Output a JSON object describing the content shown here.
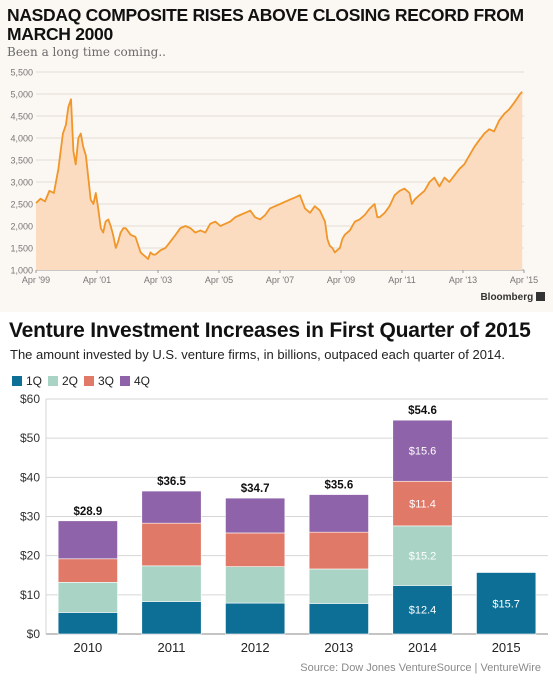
{
  "chart_data": [
    {
      "type": "area",
      "title": "NASDAQ COMPOSITE RISES ABOVE CLOSING RECORD FROM MARCH 2000",
      "subtitle": "Been a long time coming..",
      "source": "Bloomberg",
      "x_tick_labels": [
        "Apr '99",
        "Apr '01",
        "Apr '03",
        "Apr '05",
        "Apr '07",
        "Apr '09",
        "Apr '11",
        "Apr '13",
        "Apr '15"
      ],
      "y_tick_labels": [
        "1,000",
        "1,500",
        "2,000",
        "2,500",
        "3,000",
        "3,500",
        "4,000",
        "4,500",
        "5,000",
        "5,500"
      ],
      "ylim": [
        1000,
        5500
      ],
      "xlim": [
        1999.0,
        2015.33
      ],
      "grid": true,
      "color": "#f0962a",
      "fill": "#fbdcc0",
      "x": [
        1999.0,
        1999.15,
        1999.3,
        1999.45,
        1999.6,
        1999.75,
        1999.9,
        2000.0,
        2000.08,
        2000.17,
        2000.25,
        2000.33,
        2000.42,
        2000.5,
        2000.58,
        2000.67,
        2000.75,
        2000.83,
        2000.92,
        2001.0,
        2001.08,
        2001.17,
        2001.25,
        2001.33,
        2001.42,
        2001.5,
        2001.58,
        2001.67,
        2001.75,
        2001.83,
        2001.92,
        2002.0,
        2002.17,
        2002.33,
        2002.5,
        2002.58,
        2002.67,
        2002.75,
        2002.83,
        2002.92,
        2003.0,
        2003.17,
        2003.33,
        2003.5,
        2003.67,
        2003.83,
        2004.0,
        2004.17,
        2004.33,
        2004.5,
        2004.67,
        2004.83,
        2005.0,
        2005.17,
        2005.33,
        2005.5,
        2005.67,
        2005.83,
        2006.0,
        2006.17,
        2006.33,
        2006.5,
        2006.67,
        2006.83,
        2007.0,
        2007.17,
        2007.33,
        2007.5,
        2007.67,
        2007.83,
        2008.0,
        2008.17,
        2008.33,
        2008.5,
        2008.67,
        2008.75,
        2008.83,
        2008.92,
        2009.0,
        2009.08,
        2009.17,
        2009.25,
        2009.33,
        2009.5,
        2009.67,
        2009.83,
        2010.0,
        2010.17,
        2010.33,
        2010.42,
        2010.5,
        2010.67,
        2010.83,
        2011.0,
        2011.17,
        2011.33,
        2011.5,
        2011.58,
        2011.67,
        2011.83,
        2012.0,
        2012.17,
        2012.33,
        2012.5,
        2012.67,
        2012.83,
        2013.0,
        2013.17,
        2013.33,
        2013.5,
        2013.67,
        2013.83,
        2014.0,
        2014.17,
        2014.33,
        2014.5,
        2014.67,
        2014.83,
        2015.0,
        2015.1,
        2015.2,
        2015.27
      ],
      "values": [
        2520,
        2620,
        2560,
        2800,
        2750,
        3300,
        4100,
        4300,
        4700,
        4880,
        3700,
        3400,
        4000,
        4100,
        3800,
        3600,
        3100,
        2600,
        2500,
        2750,
        2400,
        1950,
        1850,
        2100,
        2150,
        2000,
        1800,
        1500,
        1650,
        1850,
        1950,
        1950,
        1800,
        1750,
        1400,
        1350,
        1300,
        1250,
        1400,
        1350,
        1350,
        1450,
        1500,
        1650,
        1800,
        1950,
        2000,
        1950,
        1850,
        1900,
        1850,
        2050,
        2100,
        2000,
        2050,
        2100,
        2200,
        2250,
        2300,
        2350,
        2200,
        2150,
        2250,
        2400,
        2450,
        2500,
        2550,
        2600,
        2650,
        2700,
        2400,
        2300,
        2450,
        2350,
        2100,
        1700,
        1550,
        1500,
        1400,
        1450,
        1500,
        1700,
        1800,
        1900,
        2100,
        2150,
        2250,
        2400,
        2500,
        2200,
        2200,
        2300,
        2450,
        2700,
        2800,
        2850,
        2750,
        2500,
        2600,
        2700,
        2800,
        3000,
        3100,
        2900,
        3100,
        3000,
        3150,
        3300,
        3400,
        3600,
        3800,
        3950,
        4100,
        4200,
        4150,
        4400,
        4550,
        4650,
        4800,
        4900,
        5000,
        5050
      ]
    },
    {
      "type": "bar",
      "stacked": true,
      "title": "Venture Investment Increases in First Quarter of 2015",
      "subtitle": "The amount invested by U.S. venture firms, in billions, outpaced each quarter of 2014.",
      "source_text": "Source: Dow Jones VentureSource  |  VentureWire",
      "categories": [
        "2010",
        "2011",
        "2012",
        "2013",
        "2014",
        "2015"
      ],
      "ylim": [
        0,
        60
      ],
      "y_tick_labels": [
        "$0",
        "$10",
        "$20",
        "$30",
        "$40",
        "$50",
        "$60"
      ],
      "grid": true,
      "legend_position": "top-left",
      "totals": [
        "$28.9",
        "$36.5",
        "$34.7",
        "$35.6",
        "$54.6",
        ""
      ],
      "series": [
        {
          "name": "1Q",
          "color": "#0d6e96",
          "values": [
            5.5,
            8.3,
            7.9,
            7.8,
            12.4,
            15.7
          ],
          "labels": [
            "",
            "",
            "",
            "",
            "$12.4",
            "$15.7"
          ]
        },
        {
          "name": "2Q",
          "color": "#a9d4c5",
          "values": [
            7.7,
            9.1,
            9.3,
            8.8,
            15.2,
            0
          ],
          "labels": [
            "",
            "",
            "",
            "",
            "$15.2",
            ""
          ]
        },
        {
          "name": "3Q",
          "color": "#e07968",
          "values": [
            6.0,
            10.9,
            8.6,
            9.4,
            11.4,
            0
          ],
          "labels": [
            "",
            "",
            "",
            "",
            "$11.4",
            ""
          ]
        },
        {
          "name": "4Q",
          "color": "#8e63a9",
          "values": [
            9.7,
            8.2,
            8.9,
            9.6,
            15.6,
            0
          ],
          "labels": [
            "",
            "",
            "",
            "",
            "$15.6",
            ""
          ]
        }
      ]
    }
  ]
}
